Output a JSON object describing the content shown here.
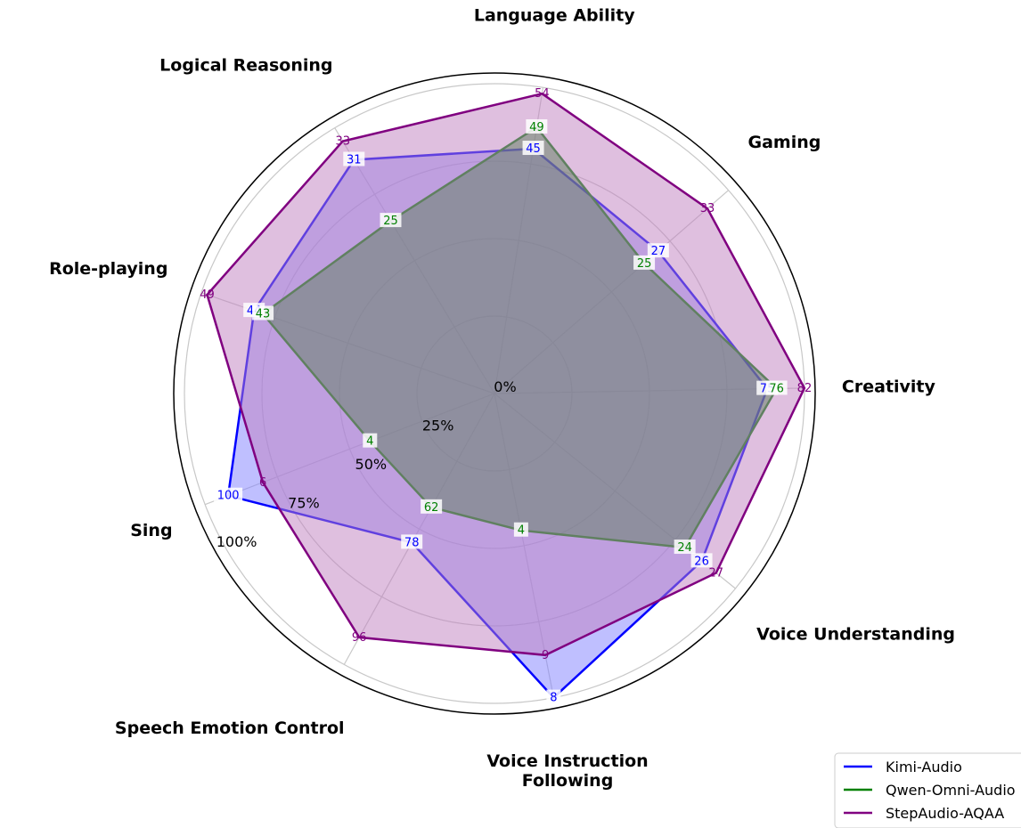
{
  "chart_data": {
    "type": "radar",
    "title": "",
    "axes": [
      "Language Ability",
      "Gaming",
      "Creativity",
      "Voice Understanding",
      "Voice Instruction Following",
      "Speech Emotion Control",
      "Sing",
      "Role-playing",
      "Logical Reasoning"
    ],
    "radial_ticks": [
      "0%",
      "25%",
      "50%",
      "75%",
      "100%"
    ],
    "radial_tick_values": [
      0,
      25,
      50,
      75,
      100
    ],
    "rmax": 100,
    "grid": true,
    "legend_position": "bottom-right",
    "series": [
      {
        "name": "Kimi-Audio",
        "color": "#0000ff",
        "fill": "#8080ff",
        "values": [
          80,
          70,
          88,
          86,
          100,
          55,
          92,
          82,
          88
        ],
        "labels": [
          "45",
          "27",
          "75",
          "26",
          "8",
          "78",
          "100",
          "44",
          "31"
        ]
      },
      {
        "name": "Qwen-Omni-Audio",
        "color": "#008000",
        "fill": "#008000",
        "values": [
          87,
          64,
          91,
          79,
          45,
          42,
          43,
          79,
          65
        ],
        "labels": [
          "49",
          "25",
          "76",
          "24",
          "4",
          "62",
          "4",
          "43",
          "25"
        ]
      },
      {
        "name": "StepAudio-AQAA",
        "color": "#800080",
        "fill": "#c080c0",
        "values": [
          98,
          91,
          100,
          92,
          86,
          90,
          80,
          98,
          95
        ],
        "labels": [
          "54",
          "33",
          "82",
          "27",
          "9",
          "96",
          "6",
          "49",
          "33"
        ]
      }
    ]
  }
}
